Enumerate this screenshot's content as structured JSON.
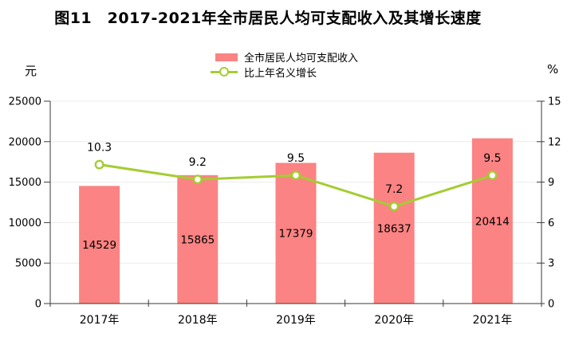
{
  "colors": {
    "bar": "#fb8383",
    "line": "#a4cd32",
    "marker_fill": "#ffffff",
    "axis": "#3a3a3a",
    "grid": "#ececec",
    "text": "#000000"
  },
  "chart_data": {
    "type": "bar+line combo",
    "title": "图11　2017-2021年全市居民人均可支配收入及其增长速度",
    "categories": [
      "2017年",
      "2018年",
      "2019年",
      "2020年",
      "2021年"
    ],
    "series": [
      {
        "name": "全市居民人均可支配收入",
        "type": "bar",
        "axis": "left",
        "values": [
          14529,
          15865,
          17379,
          18637,
          20414
        ]
      },
      {
        "name": "比上年名义增长",
        "type": "line",
        "axis": "right",
        "values": [
          10.3,
          9.2,
          9.5,
          7.2,
          9.5
        ]
      }
    ],
    "bar_labels": [
      "14529",
      "15865",
      "17379",
      "18637",
      "20414"
    ],
    "point_labels": [
      "10.3",
      "9.2",
      "9.5",
      "7.2",
      "9.5"
    ],
    "left_axis": {
      "label": "元",
      "ticks": [
        0,
        5000,
        10000,
        15000,
        20000,
        25000
      ],
      "ylim": [
        0,
        25000
      ]
    },
    "right_axis": {
      "label": "%",
      "ticks": [
        0,
        3,
        6,
        9,
        12,
        15
      ],
      "ylim": [
        0,
        15
      ]
    },
    "grid": true,
    "legend_position": "top-center"
  }
}
